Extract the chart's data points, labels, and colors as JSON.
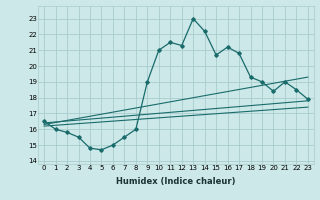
{
  "xlabel": "Humidex (Indice chaleur)",
  "xlim": [
    -0.5,
    23.5
  ],
  "ylim": [
    13.8,
    23.8
  ],
  "yticks": [
    14,
    15,
    16,
    17,
    18,
    19,
    20,
    21,
    22,
    23
  ],
  "xticks": [
    0,
    1,
    2,
    3,
    4,
    5,
    6,
    7,
    8,
    9,
    10,
    11,
    12,
    13,
    14,
    15,
    16,
    17,
    18,
    19,
    20,
    21,
    22,
    23
  ],
  "bg_color": "#cce8e8",
  "grid_color": "#aacccc",
  "line_color": "#1a6b6b",
  "main_line_x": [
    0,
    1,
    2,
    3,
    4,
    5,
    6,
    7,
    8,
    9,
    10,
    11,
    12,
    13,
    14,
    15,
    16,
    17,
    18,
    19,
    20,
    21,
    22,
    23
  ],
  "main_line_y": [
    16.5,
    16.0,
    15.8,
    15.5,
    14.8,
    14.7,
    15.0,
    15.5,
    16.0,
    19.0,
    21.0,
    21.5,
    21.3,
    23.0,
    22.2,
    20.7,
    21.2,
    20.8,
    19.3,
    19.0,
    18.4,
    19.0,
    18.5,
    17.9
  ],
  "ref_line1_x": [
    0,
    23
  ],
  "ref_line1_y": [
    16.4,
    17.8
  ],
  "ref_line2_x": [
    0,
    23
  ],
  "ref_line2_y": [
    16.2,
    17.4
  ],
  "ref_line3_x": [
    0,
    23
  ],
  "ref_line3_y": [
    16.3,
    19.3
  ],
  "tick_fontsize": 5,
  "xlabel_fontsize": 6
}
